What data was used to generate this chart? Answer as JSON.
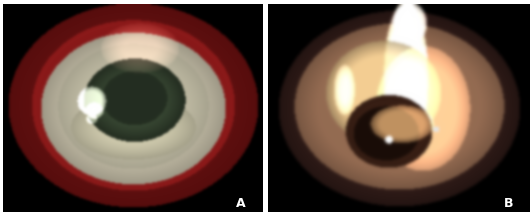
{
  "figure_width": 5.32,
  "figure_height": 2.16,
  "dpi": 100,
  "background_color": "#ffffff",
  "border_color": "#bbbbbb",
  "label_A": "A",
  "label_B": "B",
  "label_fontsize": 9,
  "label_color": "white"
}
